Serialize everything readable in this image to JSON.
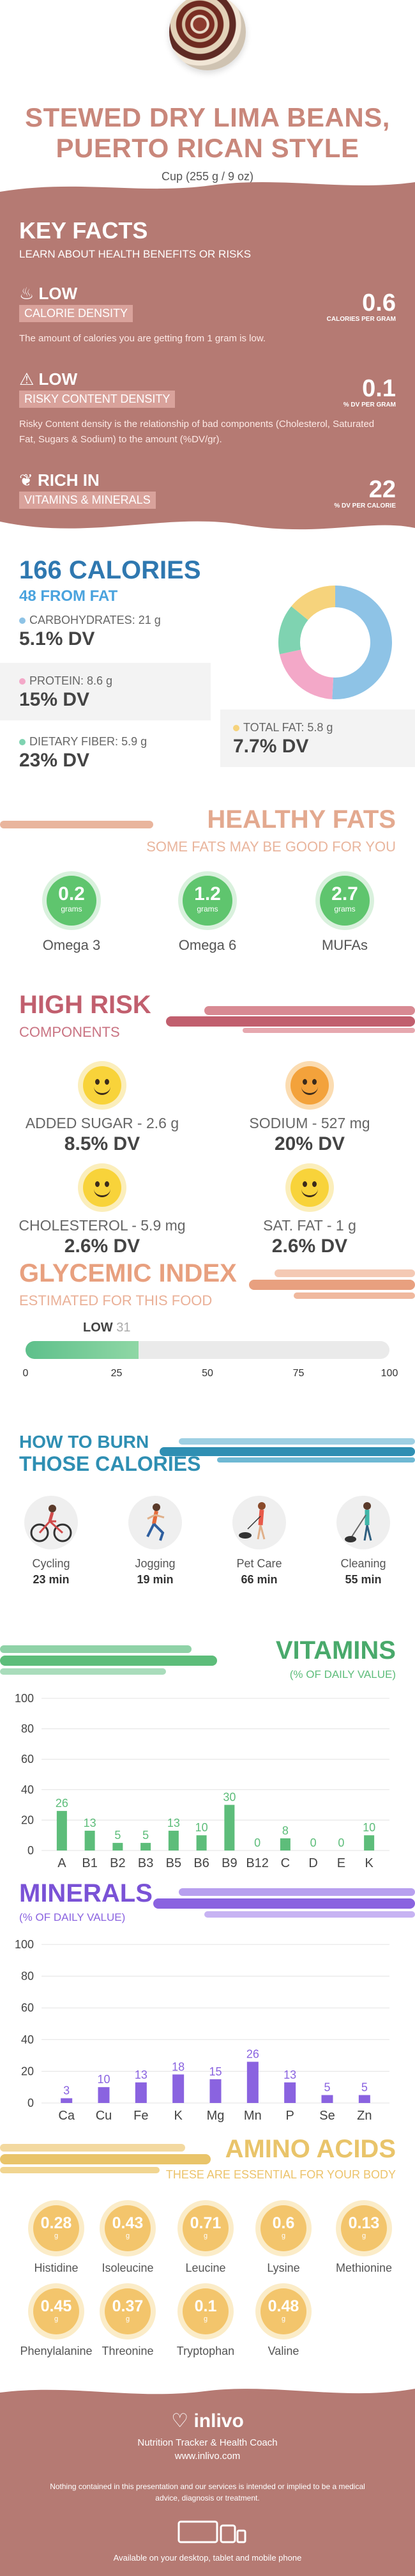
{
  "header": {
    "title_line1": "STEWED DRY LIMA BEANS,",
    "title_line2": "PUERTO RICAN STYLE",
    "serving": "Cup (255 g / 9 oz)"
  },
  "key_facts": {
    "title": "KEY FACTS",
    "subtitle": "LEARN ABOUT HEALTH BENEFITS OR RISKS",
    "items": [
      {
        "level": "LOW",
        "label": "CALORIE DENSITY",
        "icon": "flame-icon",
        "description": "The amount of calories you are getting from 1 gram is low.",
        "value": "0.6",
        "unit": "CALORIES PER GRAM"
      },
      {
        "level": "LOW",
        "label": "RISKY CONTENT DENSITY",
        "icon": "warning-icon",
        "description": "Risky Content density is the relationship of bad components (Cholesterol, Saturated Fat, Sugars & Sodium) to the amount (%DV/gr).",
        "value": "0.1",
        "unit": "% DV PER GRAM"
      },
      {
        "level": "RICH IN",
        "label": "VITAMINS & MINERALS",
        "icon": "leaf-icon",
        "description": "",
        "value": "22",
        "unit": "% DV PER CALORIE"
      }
    ]
  },
  "calories": {
    "title": "166 CALORIES",
    "from_fat": "48 FROM FAT",
    "macros": [
      {
        "name": "CARBOHYDRATES",
        "grams": "21 g",
        "dv": "5.1% DV",
        "color": "#8ec3e6"
      },
      {
        "name": "PROTEIN",
        "grams": "8.6 g",
        "dv": "15% DV",
        "color": "#f3a8c8"
      },
      {
        "name": "DIETARY FIBER",
        "grams": "5.9 g",
        "dv": "23% DV",
        "color": "#7fd3b1"
      },
      {
        "name": "TOTAL FAT",
        "grams": "5.8 g",
        "dv": "7.7% DV",
        "color": "#f6d37c"
      }
    ],
    "donut": [
      {
        "name": "CARBOHYDRATES",
        "value": 21,
        "color": "#8ec3e6"
      },
      {
        "name": "PROTEIN",
        "value": 8.6,
        "color": "#f3a8c8"
      },
      {
        "name": "DIETARY FIBER",
        "value": 5.9,
        "color": "#7fd3b1"
      },
      {
        "name": "TOTAL FAT",
        "value": 5.8,
        "color": "#f6d37c"
      }
    ]
  },
  "healthy_fats": {
    "title": "HEALTHY FATS",
    "subtitle": "SOME FATS MAY BE GOOD FOR YOU",
    "unit": "grams",
    "items": [
      {
        "value": "0.2",
        "name": "Omega 3"
      },
      {
        "value": "1.2",
        "name": "Omega 6"
      },
      {
        "value": "2.7",
        "name": "MUFAs"
      }
    ]
  },
  "high_risk": {
    "title": "HIGH RISK",
    "subtitle": "COMPONENTS",
    "items": [
      {
        "name": "ADDED SUGAR",
        "amount": "2.6 g",
        "dv": "8.5% DV",
        "mood": "happy-yellow"
      },
      {
        "name": "SODIUM",
        "amount": "527 mg",
        "dv": "20% DV",
        "mood": "happy-orange"
      },
      {
        "name": "CHOLESTEROL",
        "amount": "5.9 mg",
        "dv": "2.6% DV",
        "mood": "happy-yellow"
      },
      {
        "name": "SAT. FAT",
        "amount": "1 g",
        "dv": "2.6% DV",
        "mood": "happy-yellow"
      }
    ]
  },
  "glycemic": {
    "title": "GLYCEMIC INDEX",
    "subtitle": "ESTIMATED FOR THIS FOOD",
    "level": "LOW",
    "value": 31,
    "value_text": "31",
    "ticks": [
      "0",
      "25",
      "50",
      "75",
      "100"
    ]
  },
  "burn": {
    "title_line1": "HOW TO BURN",
    "title_line2": "THOSE CALORIES",
    "activities": [
      {
        "name": "Cycling",
        "minutes": "23 min",
        "icon": "cycling-icon"
      },
      {
        "name": "Jogging",
        "minutes": "19 min",
        "icon": "jogging-icon"
      },
      {
        "name": "Pet Care",
        "minutes": "66 min",
        "icon": "pet-care-icon"
      },
      {
        "name": "Cleaning",
        "minutes": "55 min",
        "icon": "cleaning-icon"
      }
    ]
  },
  "vitamins": {
    "title": "VITAMINS",
    "subtitle": "(% OF DAILY VALUE)",
    "chart_data": {
      "type": "bar",
      "categories": [
        "A",
        "B1",
        "B2",
        "B3",
        "B5",
        "B6",
        "B9",
        "B12",
        "C",
        "D",
        "E",
        "K"
      ],
      "values": [
        26,
        13,
        5,
        5,
        13,
        10,
        30,
        0,
        8,
        0,
        0,
        10
      ],
      "labels": [
        "26",
        "13",
        "5",
        "5",
        "13",
        "10",
        "30",
        "0",
        "8",
        "0",
        "0",
        "10"
      ],
      "yticks": [
        "0",
        "20",
        "40",
        "60",
        "80",
        "100"
      ],
      "ylim": [
        0,
        100
      ],
      "color": "#5dbd7a"
    }
  },
  "minerals": {
    "title": "MINERALS",
    "subtitle": "(% OF DAILY VALUE)",
    "chart_data": {
      "type": "bar",
      "categories": [
        "Ca",
        "Cu",
        "Fe",
        "K",
        "Mg",
        "Mn",
        "P",
        "Se",
        "Zn"
      ],
      "values": [
        3,
        10,
        13,
        18,
        15,
        26,
        13,
        5,
        5
      ],
      "labels": [
        "3",
        "10",
        "13",
        "18",
        "15",
        "26",
        "13",
        "5",
        "5"
      ],
      "yticks": [
        "0",
        "20",
        "40",
        "60",
        "80",
        "100"
      ],
      "ylim": [
        0,
        100
      ],
      "color": "#8a63e0"
    }
  },
  "amino": {
    "title": "AMINO ACIDS",
    "subtitle": "THESE ARE ESSENTIAL FOR YOUR BODY",
    "unit": "g",
    "items": [
      {
        "value": "0.28",
        "name": "Histidine"
      },
      {
        "value": "0.43",
        "name": "Isoleucine"
      },
      {
        "value": "0.71",
        "name": "Leucine"
      },
      {
        "value": "0.6",
        "name": "Lysine"
      },
      {
        "value": "0.13",
        "name": "Methionine"
      },
      {
        "value": "0.45",
        "name": "Phenylalanine"
      },
      {
        "value": "0.37",
        "name": "Threonine"
      },
      {
        "value": "0.1",
        "name": "Tryptophan"
      },
      {
        "value": "0.48",
        "name": "Valine"
      }
    ]
  },
  "footer": {
    "brand": "inlivo",
    "tagline": "Nutrition Tracker & Health Coach",
    "url": "www.inlivo.com",
    "disclaimer": "Nothing contained in this presentation and our services is intended or implied to be a medical advice, diagnosis or treatment.",
    "available": "Available on your desktop, tablet and mobile phone"
  }
}
